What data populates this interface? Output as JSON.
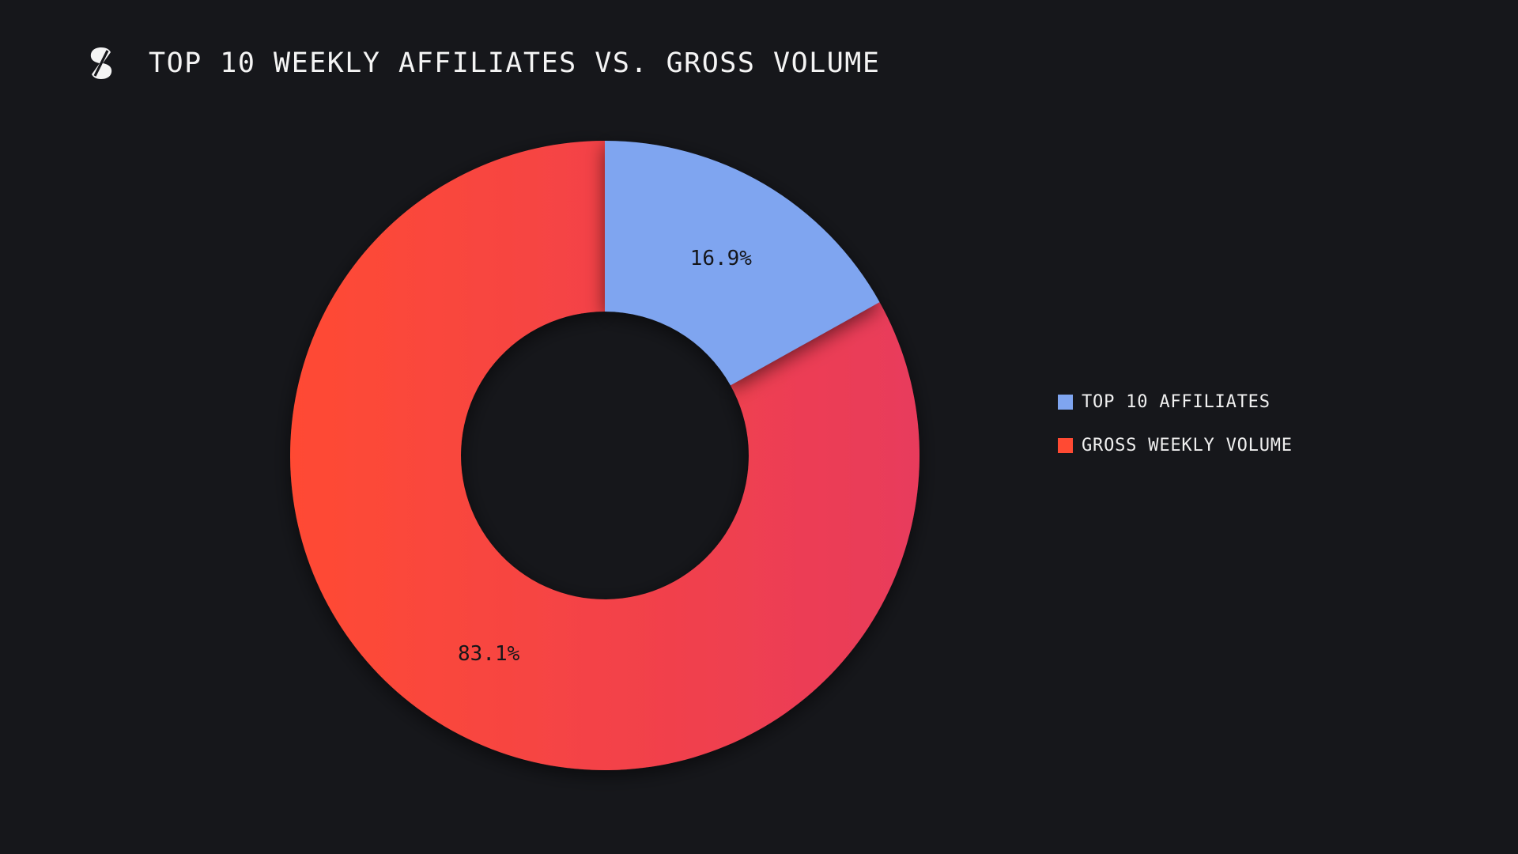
{
  "header": {
    "title": "TOP 10 WEEKLY AFFILIATES VS. GROSS VOLUME",
    "logo_icon": "slash-s-logo-icon"
  },
  "colors": {
    "background": "#16171b",
    "affiliates": "#7fa5f0",
    "volume_start": "#ff4a33",
    "volume_end": "#e83b5c"
  },
  "chart_data": {
    "type": "pie",
    "variant": "donut",
    "title": "TOP 10 WEEKLY AFFILIATES VS. GROSS VOLUME",
    "legend_position": "right",
    "slices": [
      {
        "name": "TOP 10 AFFILIATES",
        "value": 16.9,
        "label": "16.9%",
        "color": "#7fa5f0"
      },
      {
        "name": "GROSS WEEKLY VOLUME",
        "value": 83.1,
        "label": "83.1%",
        "color": "#ff4a33"
      }
    ]
  },
  "legend": {
    "items": [
      {
        "label": "TOP 10 AFFILIATES",
        "color": "#7fa5f0"
      },
      {
        "label": "GROSS WEEKLY VOLUME",
        "color": "#ff4a33"
      }
    ]
  }
}
